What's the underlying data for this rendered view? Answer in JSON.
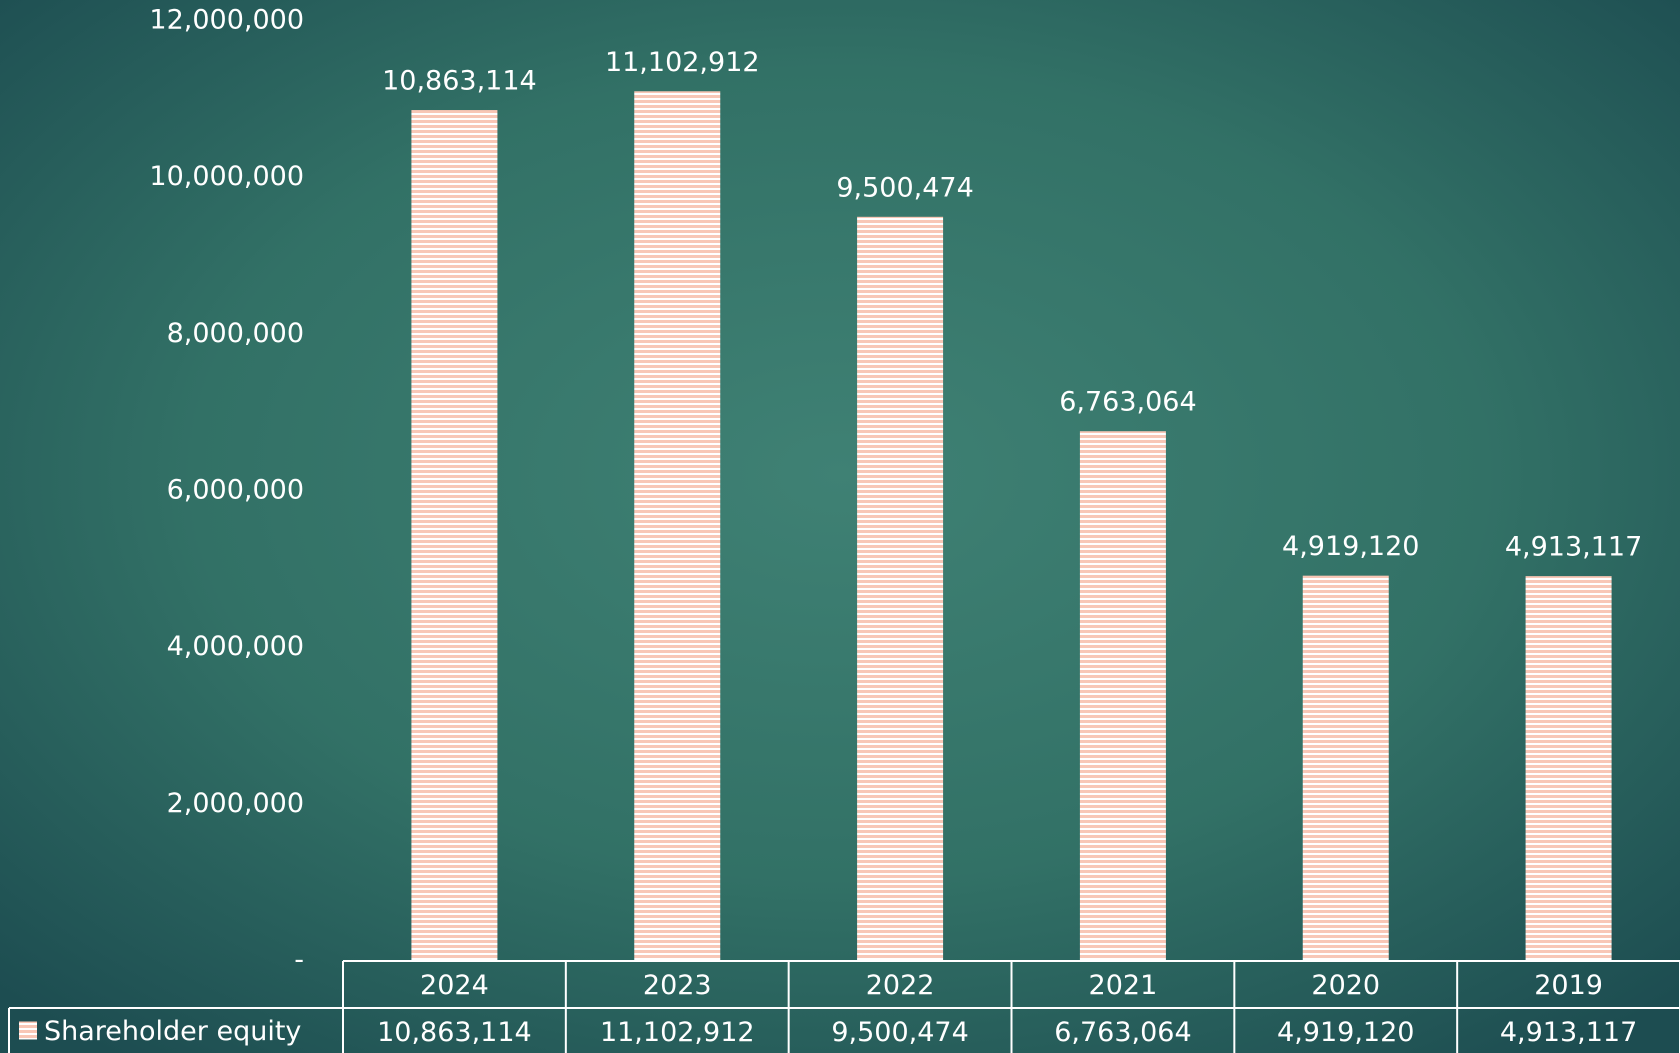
{
  "chart_data": {
    "type": "bar",
    "categories": [
      "2024",
      "2023",
      "2022",
      "2021",
      "2020",
      "2019"
    ],
    "series": [
      {
        "name": "Shareholder equity",
        "color": "#f8c7b6",
        "values": [
          10863114,
          11102912,
          9500474,
          6763064,
          4919120,
          4913117
        ],
        "value_labels": [
          "10,863,114",
          "11,102,912",
          "9,500,474",
          "6,763,064",
          "4,919,120",
          "4,913,117"
        ]
      }
    ],
    "ylim": [
      0,
      12000000
    ],
    "yticks": [
      {
        "value": 0,
        "label": "-"
      },
      {
        "value": 2000000,
        "label": "2,000,000"
      },
      {
        "value": 4000000,
        "label": "4,000,000"
      },
      {
        "value": 6000000,
        "label": "6,000,000"
      },
      {
        "value": 8000000,
        "label": "8,000,000"
      },
      {
        "value": 10000000,
        "label": "10,000,000"
      },
      {
        "value": 12000000,
        "label": "12,000,000"
      }
    ],
    "grid": false,
    "data_table": true
  }
}
